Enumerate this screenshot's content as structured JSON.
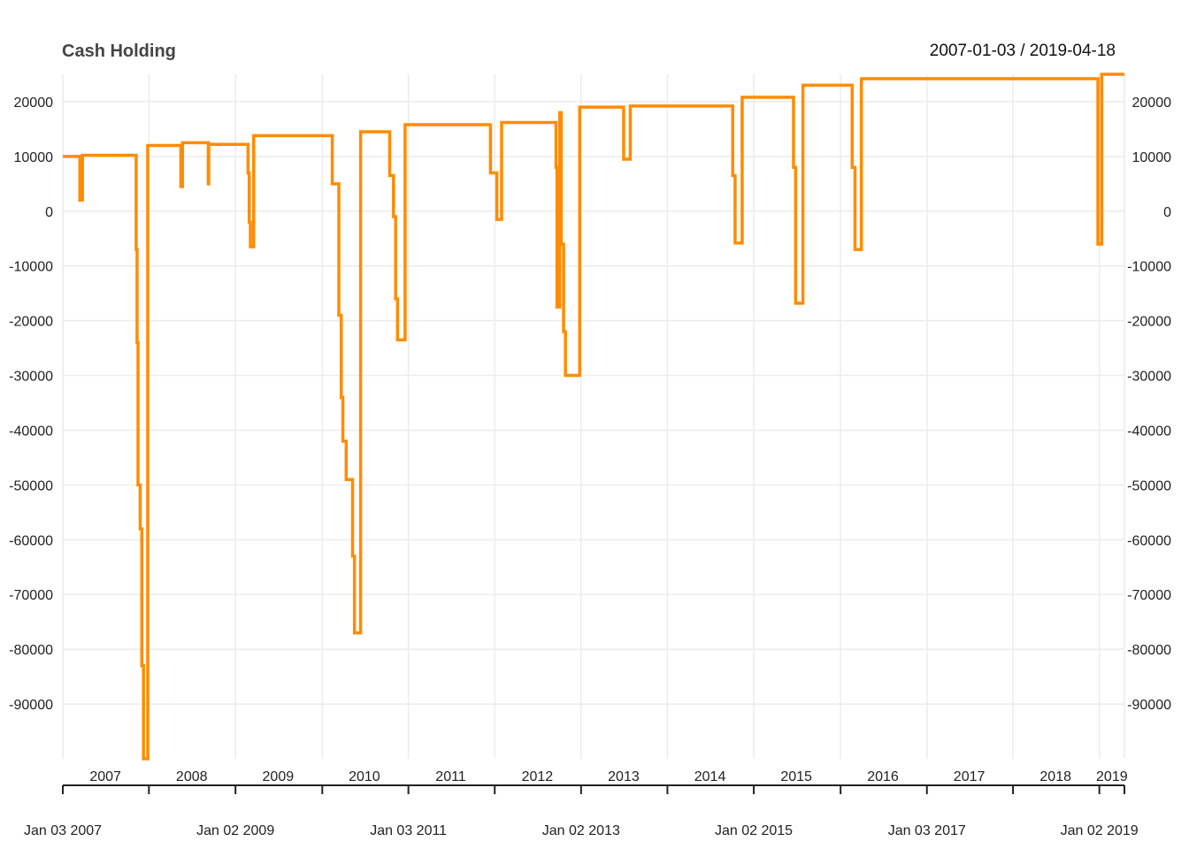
{
  "chart_data": {
    "type": "line",
    "title": "Cash Holding",
    "date_range": "2007-01-03 / 2019-04-18",
    "colors": {
      "line": "#ff8c00",
      "grid": "#ececec",
      "axis": "#222222"
    },
    "grid": true,
    "ylim": [
      -100000,
      25000
    ],
    "yticks": [
      20000,
      10000,
      0,
      -10000,
      -20000,
      -30000,
      -40000,
      -50000,
      -60000,
      -70000,
      -80000,
      -90000
    ],
    "ytick_labels": [
      "20000",
      "10000",
      "0",
      "-10000",
      "-20000",
      "-30000",
      "-40000",
      "-50000",
      "-60000",
      "-70000",
      "-80000",
      "-90000"
    ],
    "xlim": [
      "2007-01-03",
      "2019-04-18"
    ],
    "year_labels": [
      {
        "label": "2007",
        "date": "2007-07-02"
      },
      {
        "label": "2008",
        "date": "2008-07-01"
      },
      {
        "label": "2009",
        "date": "2009-07-01"
      },
      {
        "label": "2010",
        "date": "2010-07-01"
      },
      {
        "label": "2011",
        "date": "2011-07-01"
      },
      {
        "label": "2012",
        "date": "2012-07-01"
      },
      {
        "label": "2013",
        "date": "2013-07-01"
      },
      {
        "label": "2014",
        "date": "2014-07-01"
      },
      {
        "label": "2015",
        "date": "2015-07-01"
      },
      {
        "label": "2016",
        "date": "2016-07-01"
      },
      {
        "label": "2017",
        "date": "2017-07-01"
      },
      {
        "label": "2018",
        "date": "2018-07-01"
      },
      {
        "label": "2019",
        "date": "2019-02-24"
      }
    ],
    "year_boundaries": [
      "2008-01-02",
      "2009-01-02",
      "2010-01-04",
      "2011-01-03",
      "2012-01-03",
      "2013-01-02",
      "2014-01-02",
      "2015-01-02",
      "2016-01-04",
      "2017-01-03",
      "2018-01-02",
      "2019-01-02"
    ],
    "bottom_ticks": [
      {
        "label": "Jan 03 2007",
        "date": "2007-01-03"
      },
      {
        "label": "Jan 02 2009",
        "date": "2009-01-02"
      },
      {
        "label": "Jan 03 2011",
        "date": "2011-01-03"
      },
      {
        "label": "Jan 02 2013",
        "date": "2013-01-02"
      },
      {
        "label": "Jan 02 2015",
        "date": "2015-01-02"
      },
      {
        "label": "Jan 03 2017",
        "date": "2017-01-03"
      },
      {
        "label": "Jan 02 2019",
        "date": "2019-01-02"
      }
    ],
    "series": [
      {
        "points": [
          [
            "2007-01-03",
            10000
          ],
          [
            "2007-03-15",
            10000
          ],
          [
            "2007-03-16",
            2000
          ],
          [
            "2007-03-26",
            2000
          ],
          [
            "2007-03-27",
            10200
          ],
          [
            "2007-11-08",
            10200
          ],
          [
            "2007-11-09",
            -7000
          ],
          [
            "2007-11-13",
            -24000
          ],
          [
            "2007-11-17",
            -50000
          ],
          [
            "2007-11-26",
            -58000
          ],
          [
            "2007-12-03",
            -83000
          ],
          [
            "2007-12-10",
            -100000
          ],
          [
            "2007-12-20",
            -100000
          ],
          [
            "2007-12-28",
            12000
          ],
          [
            "2008-05-15",
            12000
          ],
          [
            "2008-05-16",
            4500
          ],
          [
            "2008-05-22",
            4500
          ],
          [
            "2008-05-23",
            12500
          ],
          [
            "2008-09-08",
            12500
          ],
          [
            "2008-09-09",
            5000
          ],
          [
            "2008-09-11",
            12200
          ],
          [
            "2009-02-23",
            12200
          ],
          [
            "2009-02-24",
            7000
          ],
          [
            "2009-03-01",
            -2000
          ],
          [
            "2009-03-06",
            -6500
          ],
          [
            "2009-03-16",
            -6500
          ],
          [
            "2009-03-20",
            13800
          ],
          [
            "2010-02-12",
            13800
          ],
          [
            "2010-02-15",
            5000
          ],
          [
            "2010-03-10",
            5000
          ],
          [
            "2010-03-15",
            -19000
          ],
          [
            "2010-03-25",
            -34000
          ],
          [
            "2010-04-01",
            -42000
          ],
          [
            "2010-04-15",
            -49000
          ],
          [
            "2010-05-12",
            -63000
          ],
          [
            "2010-05-20",
            -77000
          ],
          [
            "2010-06-05",
            -77000
          ],
          [
            "2010-06-15",
            14500
          ],
          [
            "2010-10-15",
            14500
          ],
          [
            "2010-10-16",
            6500
          ],
          [
            "2010-11-01",
            -1000
          ],
          [
            "2010-11-10",
            -16000
          ],
          [
            "2010-11-18",
            -23500
          ],
          [
            "2010-12-15",
            -23500
          ],
          [
            "2010-12-20",
            15800
          ],
          [
            "2011-12-15",
            15800
          ],
          [
            "2011-12-16",
            7000
          ],
          [
            "2012-01-05",
            7000
          ],
          [
            "2012-01-12",
            -1500
          ],
          [
            "2012-01-25",
            -1500
          ],
          [
            "2012-02-01",
            16200
          ],
          [
            "2012-09-15",
            16200
          ],
          [
            "2012-09-18",
            8000
          ],
          [
            "2012-09-22",
            -17500
          ],
          [
            "2012-10-01",
            -17500
          ],
          [
            "2012-10-04",
            18000
          ],
          [
            "2012-10-10",
            -6000
          ],
          [
            "2012-10-20",
            -22000
          ],
          [
            "2012-10-28",
            -30000
          ],
          [
            "2012-12-20",
            -30000
          ],
          [
            "2012-12-27",
            19000
          ],
          [
            "2013-06-27",
            19000
          ],
          [
            "2013-07-01",
            9500
          ],
          [
            "2013-07-25",
            9500
          ],
          [
            "2013-07-29",
            19200
          ],
          [
            "2014-10-02",
            19200
          ],
          [
            "2014-10-05",
            6500
          ],
          [
            "2014-10-15",
            -5800
          ],
          [
            "2014-11-10",
            -5800
          ],
          [
            "2014-11-14",
            20800
          ],
          [
            "2015-06-15",
            20800
          ],
          [
            "2015-06-19",
            8000
          ],
          [
            "2015-06-28",
            -16800
          ],
          [
            "2015-07-25",
            -16800
          ],
          [
            "2015-07-29",
            23000
          ],
          [
            "2016-02-15",
            23000
          ],
          [
            "2016-02-22",
            8000
          ],
          [
            "2016-03-05",
            -7000
          ],
          [
            "2016-03-28",
            -7000
          ],
          [
            "2016-04-01",
            24200
          ],
          [
            "2018-12-20",
            24200
          ],
          [
            "2018-12-27",
            -6000
          ],
          [
            "2019-01-08",
            -6000
          ],
          [
            "2019-01-12",
            25000
          ],
          [
            "2019-04-18",
            25000
          ]
        ]
      }
    ]
  }
}
